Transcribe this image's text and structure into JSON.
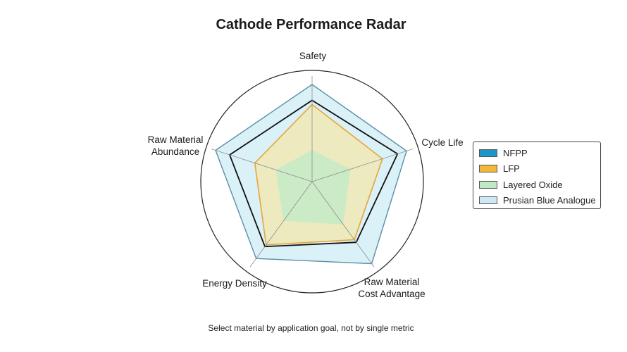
{
  "chart_data": {
    "type": "radar",
    "title": "Cathode Performance Radar",
    "caption": "Select material by application goal, not by single metric",
    "axes": [
      "Safety",
      "Cycle Life",
      "Raw Material\nCost Advantage",
      "Energy Density",
      "Raw Material\nAbundance"
    ],
    "range": [
      0,
      10
    ],
    "grid": false,
    "legend_position": "right",
    "series": [
      {
        "name": "Prusian Blue Analogue",
        "values": [
          9.2,
          9.4,
          9.6,
          9.0,
          9.6
        ],
        "fill": "#d4eef6",
        "stroke": "#5a8ea8"
      },
      {
        "name": "NFPP",
        "values": [
          7.7,
          8.5,
          7.1,
          7.6,
          8.2
        ],
        "fill": "none",
        "stroke": "#111111"
      },
      {
        "name": "LFP",
        "values": [
          7.3,
          7.0,
          6.8,
          7.4,
          5.7
        ],
        "fill": "#efe9b4",
        "stroke": "#e7a53a"
      },
      {
        "name": "Layered Oxide",
        "values": [
          3.0,
          3.8,
          5.0,
          4.6,
          3.6
        ],
        "fill": "#c5eac8",
        "stroke": "none"
      }
    ],
    "legend": [
      {
        "name": "NFPP",
        "color": "#1a96c8"
      },
      {
        "name": "LFP",
        "color": "#f3b73c"
      },
      {
        "name": "Layered Oxide",
        "color": "#bfe9c6"
      },
      {
        "name": "Prusian Blue Analogue",
        "color": "#cde9f3"
      }
    ]
  }
}
